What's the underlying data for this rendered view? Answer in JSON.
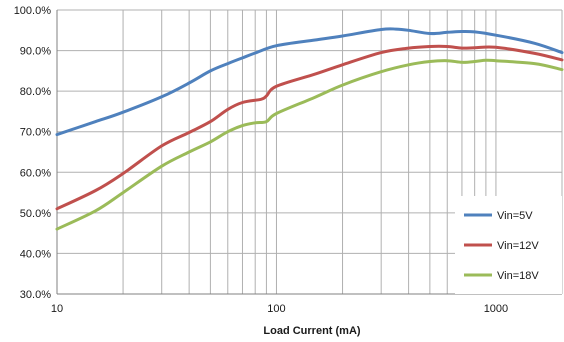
{
  "chart_data": {
    "type": "line",
    "title": "",
    "xlabel": "Load Current (mA)",
    "ylabel": "",
    "x_scale": "log",
    "xlim": [
      10,
      2000
    ],
    "ylim": [
      30,
      100
    ],
    "x_tick_labels": [
      "10",
      "100",
      "1000"
    ],
    "y_ticks": [
      30,
      40,
      50,
      60,
      70,
      80,
      90,
      100
    ],
    "y_tick_labels": [
      "30.0%",
      "40.0%",
      "50.0%",
      "60.0%",
      "70.0%",
      "80.0%",
      "90.0%",
      "100.0%"
    ],
    "grid": true,
    "legend_position": "right",
    "series": [
      {
        "name": "Vin=5V",
        "color": "#4f81bd",
        "x": [
          10,
          15,
          20,
          30,
          40,
          50,
          60,
          70,
          80,
          100,
          150,
          200,
          300,
          350,
          400,
          500,
          600,
          700,
          800,
          1000,
          1500,
          2000
        ],
        "y": [
          69.3,
          72.5,
          74.8,
          78.6,
          82.0,
          85.0,
          86.8,
          88.2,
          89.4,
          91.2,
          92.6,
          93.6,
          95.2,
          95.3,
          95.0,
          94.2,
          94.5,
          94.7,
          94.6,
          93.8,
          91.8,
          89.5
        ]
      },
      {
        "name": "Vin=12V",
        "color": "#c0504d",
        "x": [
          10,
          15,
          20,
          30,
          40,
          50,
          60,
          70,
          85,
          90,
          100,
          150,
          200,
          300,
          400,
          500,
          600,
          700,
          800,
          1000,
          1500,
          2000
        ],
        "y": [
          51.0,
          55.5,
          59.7,
          66.5,
          69.8,
          72.5,
          75.5,
          77.2,
          78.0,
          78.8,
          81.2,
          84.2,
          86.5,
          89.5,
          90.6,
          91.0,
          91.0,
          90.6,
          90.7,
          90.8,
          89.3,
          87.7
        ]
      },
      {
        "name": "Vin=18V",
        "color": "#9bbb59",
        "x": [
          10,
          15,
          20,
          30,
          40,
          50,
          60,
          70,
          80,
          90,
          100,
          150,
          200,
          300,
          400,
          500,
          600,
          700,
          800,
          900,
          1000,
          1500,
          2000
        ],
        "y": [
          46.0,
          50.5,
          55.0,
          61.5,
          65.0,
          67.5,
          70.0,
          71.5,
          72.2,
          72.5,
          74.5,
          78.5,
          81.5,
          84.8,
          86.5,
          87.3,
          87.5,
          87.1,
          87.3,
          87.6,
          87.5,
          86.8,
          85.3
        ]
      }
    ]
  }
}
